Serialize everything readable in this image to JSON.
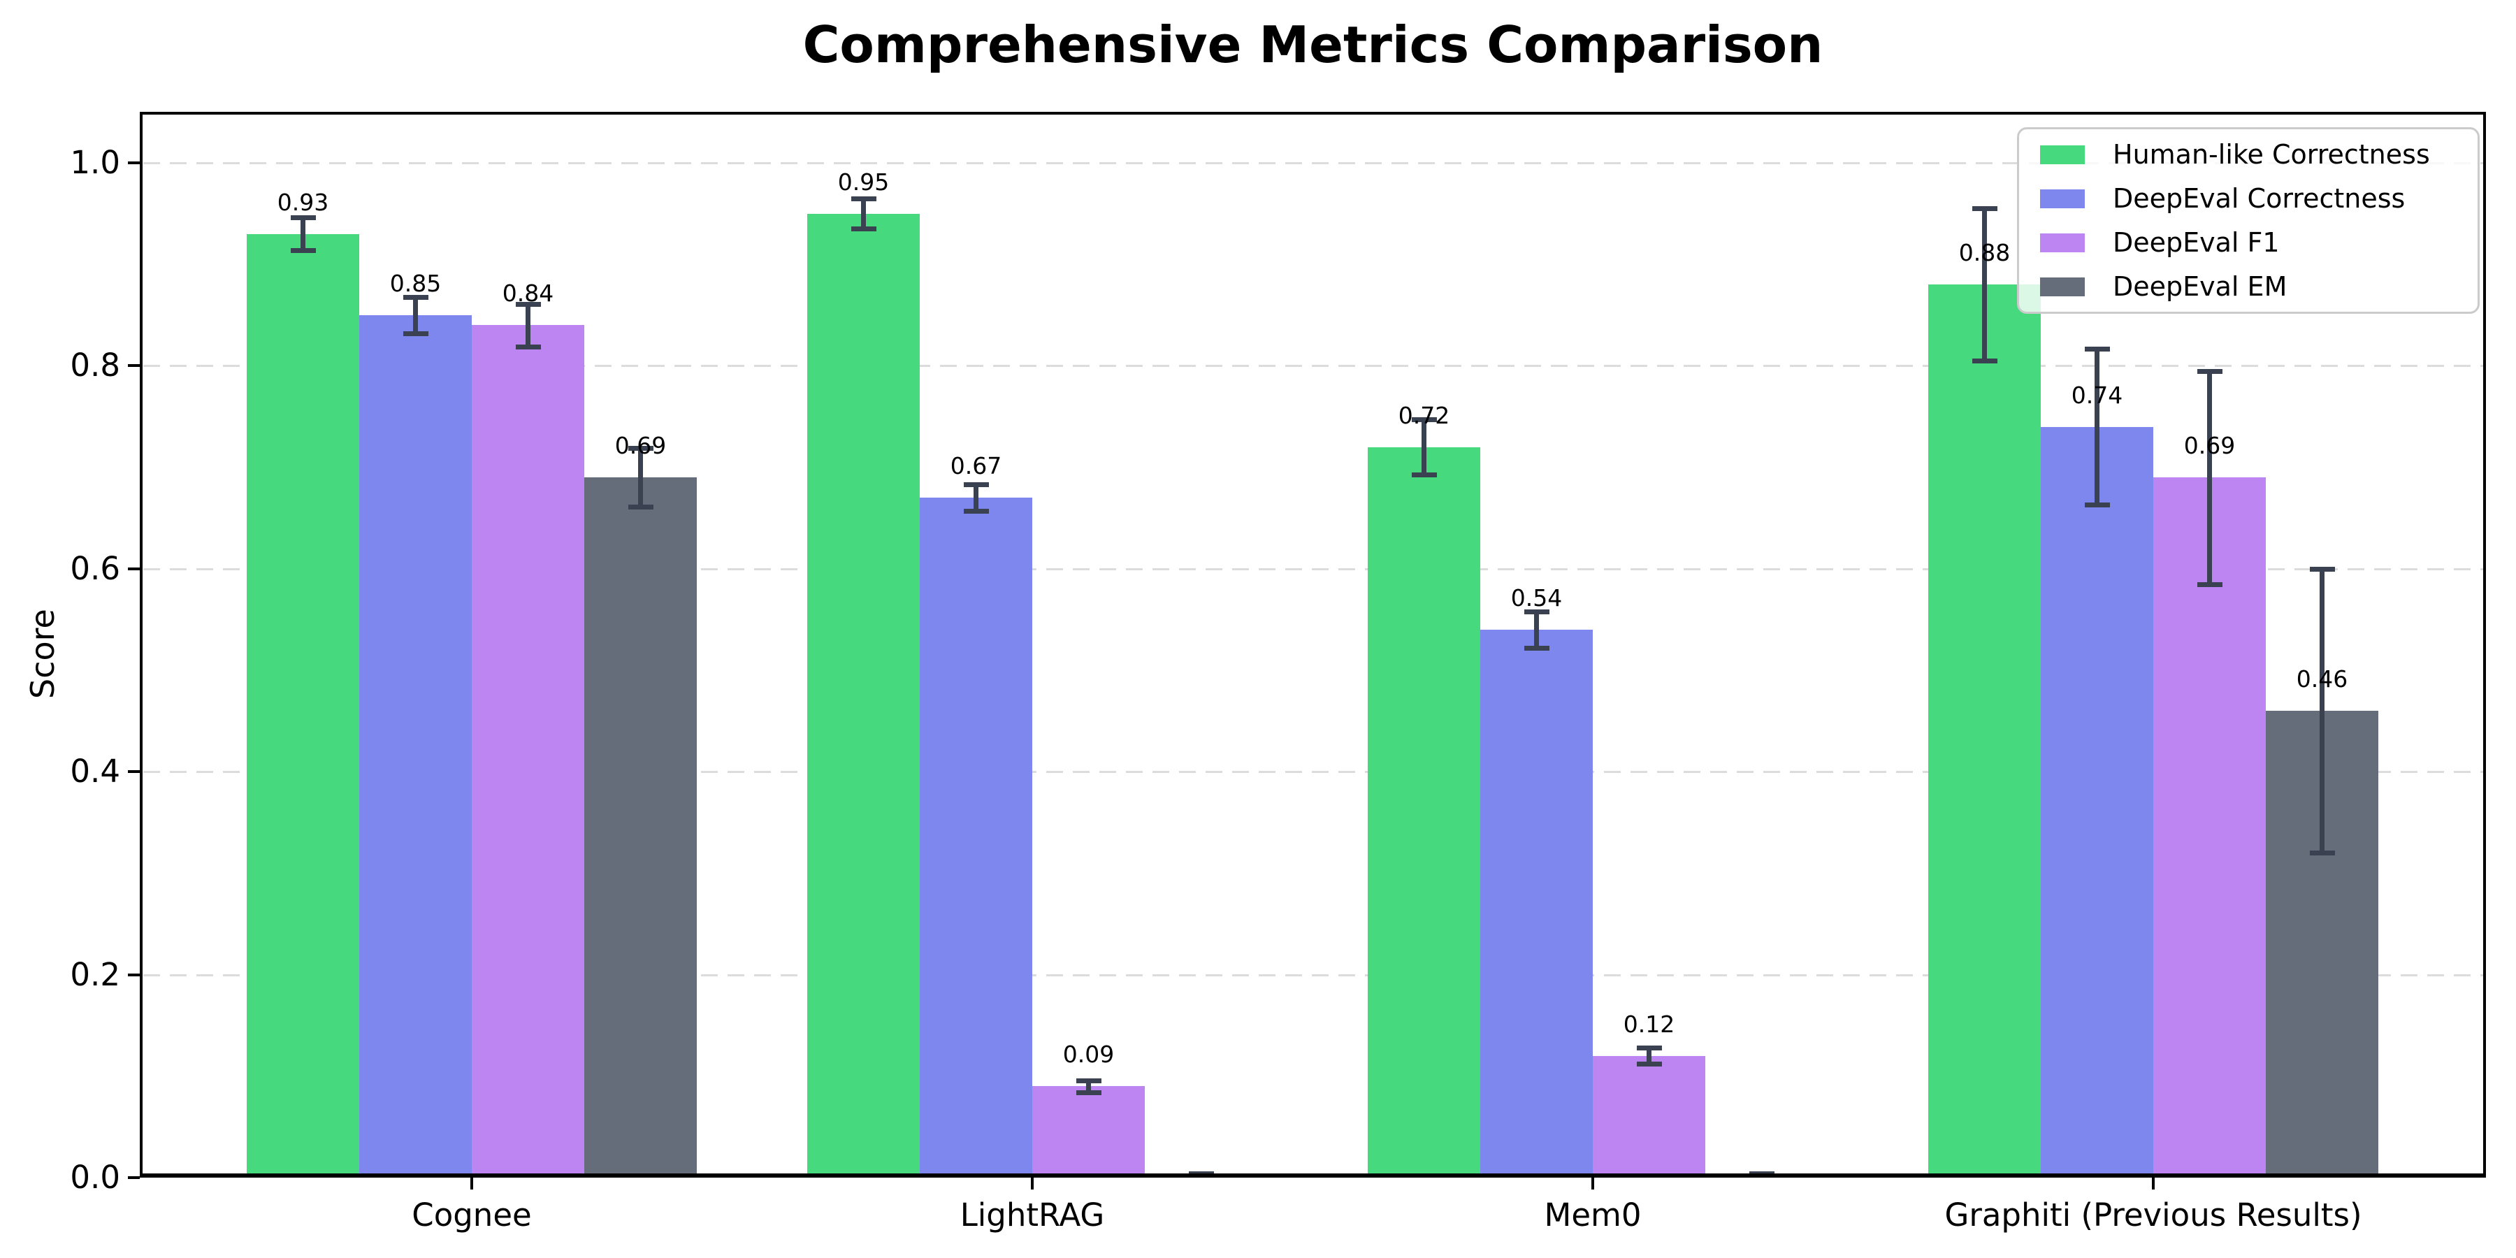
{
  "chart": {
    "title": "Comprehensive Metrics Comparison",
    "ylabel": "Score"
  },
  "chart_data": {
    "type": "bar",
    "title": "Comprehensive Metrics Comparison",
    "xlabel": "",
    "ylabel": "Score",
    "categories": [
      "Cognee",
      "LightRAG",
      "Mem0",
      "Graphiti (Previous Results)"
    ],
    "series": [
      {
        "name": "Human-like Correctness",
        "color": "#46d97e",
        "values": [
          0.93,
          0.95,
          0.72,
          0.88
        ],
        "errors": [
          0.016,
          0.015,
          0.027,
          0.075
        ],
        "value_labels": [
          "0.93",
          "0.95",
          "0.72",
          "0.88"
        ]
      },
      {
        "name": "DeepEval Correctness",
        "color": "#7e87ee",
        "values": [
          0.85,
          0.67,
          0.54,
          0.74
        ],
        "errors": [
          0.018,
          0.013,
          0.018,
          0.077
        ],
        "value_labels": [
          "0.85",
          "0.67",
          "0.54",
          "0.74"
        ]
      },
      {
        "name": "DeepEval F1",
        "color": "#bd85f2",
        "values": [
          0.84,
          0.09,
          0.12,
          0.69
        ],
        "errors": [
          0.021,
          0.006,
          0.008,
          0.105
        ],
        "value_labels": [
          "0.84",
          "0.09",
          "0.12",
          "0.69"
        ]
      },
      {
        "name": "DeepEval EM",
        "color": "#656d7a",
        "values": [
          0.69,
          0.0,
          0.0,
          0.46
        ],
        "errors": [
          0.029,
          0.004,
          0.004,
          0.14
        ],
        "value_labels": [
          "0.69",
          "",
          "",
          "0.46"
        ]
      }
    ],
    "ylim": [
      0,
      1.05
    ],
    "yticks": [
      0.0,
      0.2,
      0.4,
      0.6,
      0.8,
      1.0
    ],
    "ytick_labels": [
      "0.0",
      "0.2",
      "0.4",
      "0.6",
      "0.8",
      "1.0"
    ],
    "grid": {
      "axis": "y",
      "style": "dashed",
      "color": "#dcdcdc",
      "on": true
    },
    "legend_position": "upper right",
    "error_bar_color": "#3a4252",
    "axis_color": "#000000",
    "background_color": "#ffffff"
  }
}
